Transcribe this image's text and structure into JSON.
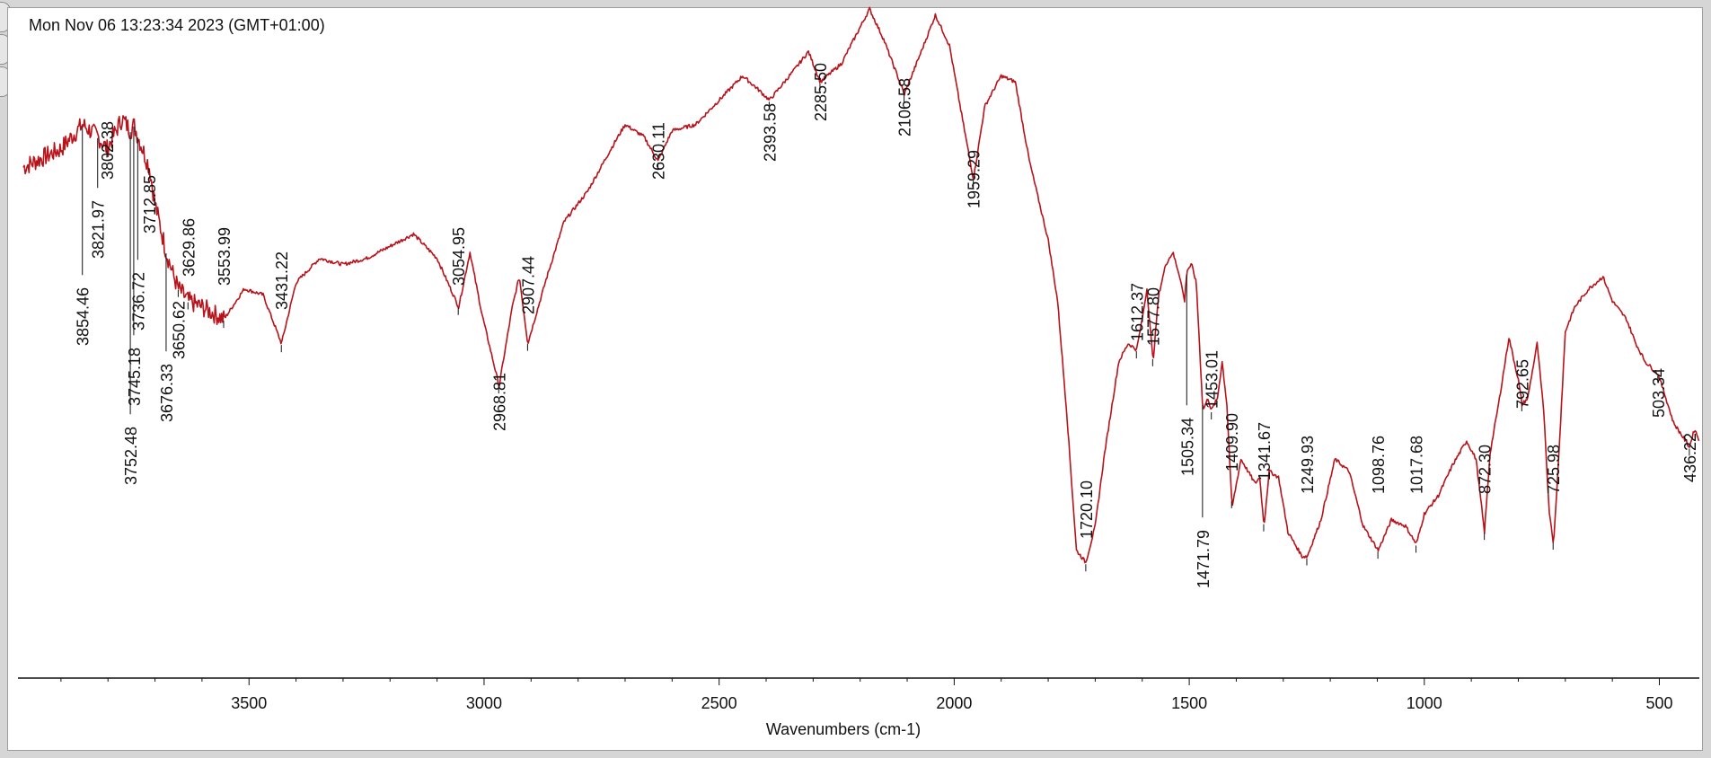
{
  "header": {
    "timestamp": "Mon Nov 06 13:23:34 2023 (GMT+01:00)"
  },
  "colors": {
    "trace": "#b8121b",
    "axis": "#111111",
    "frame": "#9c9c9c",
    "window": "#d6d6d6"
  },
  "chart_data": {
    "type": "line",
    "title": "",
    "xlabel": "Wavenumbers (cm-1)",
    "ylabel": "",
    "x_reversed": true,
    "xlim": [
      3980,
      415
    ],
    "x_ticks": [
      3500,
      3000,
      2500,
      2000,
      1500,
      1000,
      500
    ],
    "y_unit": "relative transmittance (0 = bottom of plot, 100 = top of plot)",
    "grid": false,
    "series": [
      {
        "values": [
          [
            3980,
            84
          ],
          [
            3900,
            87
          ],
          [
            3854,
            91
          ],
          [
            3821,
            89
          ],
          [
            3802,
            87
          ],
          [
            3770,
            92
          ],
          [
            3752,
            90
          ],
          [
            3745,
            91
          ],
          [
            3736,
            89
          ],
          [
            3712,
            84
          ],
          [
            3700,
            78
          ],
          [
            3676,
            70
          ],
          [
            3660,
            66
          ],
          [
            3650,
            64
          ],
          [
            3629,
            62
          ],
          [
            3600,
            61
          ],
          [
            3553,
            59
          ],
          [
            3510,
            64
          ],
          [
            3470,
            63
          ],
          [
            3431,
            55
          ],
          [
            3400,
            65
          ],
          [
            3350,
            69
          ],
          [
            3300,
            68
          ],
          [
            3250,
            69
          ],
          [
            3200,
            71
          ],
          [
            3150,
            73
          ],
          [
            3100,
            69
          ],
          [
            3054,
            61
          ],
          [
            3030,
            70
          ],
          [
            3005,
            60
          ],
          [
            2968,
            48
          ],
          [
            2940,
            61
          ],
          [
            2925,
            66
          ],
          [
            2907,
            55
          ],
          [
            2870,
            65
          ],
          [
            2830,
            75
          ],
          [
            2780,
            80
          ],
          [
            2730,
            87
          ],
          [
            2700,
            91
          ],
          [
            2660,
            89
          ],
          [
            2630,
            85
          ],
          [
            2600,
            90
          ],
          [
            2550,
            91
          ],
          [
            2500,
            95
          ],
          [
            2450,
            99
          ],
          [
            2420,
            97
          ],
          [
            2393,
            95
          ],
          [
            2340,
            100
          ],
          [
            2310,
            103
          ],
          [
            2285,
            98
          ],
          [
            2240,
            101
          ],
          [
            2200,
            107
          ],
          [
            2180,
            110
          ],
          [
            2150,
            105
          ],
          [
            2106,
            96
          ],
          [
            2070,
            103
          ],
          [
            2040,
            109
          ],
          [
            2010,
            104
          ],
          [
            1985,
            93
          ],
          [
            1959,
            82
          ],
          [
            1935,
            94
          ],
          [
            1900,
            99
          ],
          [
            1870,
            98
          ],
          [
            1840,
            85
          ],
          [
            1800,
            72
          ],
          [
            1780,
            62
          ],
          [
            1760,
            43
          ],
          [
            1740,
            21
          ],
          [
            1720,
            19
          ],
          [
            1700,
            25
          ],
          [
            1680,
            37
          ],
          [
            1650,
            52
          ],
          [
            1630,
            55
          ],
          [
            1612,
            54
          ],
          [
            1600,
            59
          ],
          [
            1590,
            64
          ],
          [
            1577,
            52
          ],
          [
            1565,
            63
          ],
          [
            1550,
            68
          ],
          [
            1535,
            70
          ],
          [
            1520,
            66
          ],
          [
            1510,
            62
          ],
          [
            1505,
            67
          ],
          [
            1495,
            68
          ],
          [
            1485,
            65
          ],
          [
            1475,
            50
          ],
          [
            1471,
            44
          ],
          [
            1460,
            46
          ],
          [
            1453,
            44
          ],
          [
            1440,
            46
          ],
          [
            1430,
            52
          ],
          [
            1420,
            45
          ],
          [
            1409,
            28
          ],
          [
            1390,
            36
          ],
          [
            1375,
            34
          ],
          [
            1360,
            32
          ],
          [
            1350,
            33
          ],
          [
            1341,
            25
          ],
          [
            1330,
            34
          ],
          [
            1310,
            33
          ],
          [
            1290,
            24
          ],
          [
            1260,
            20
          ],
          [
            1249,
            20
          ],
          [
            1220,
            26
          ],
          [
            1190,
            36
          ],
          [
            1160,
            34
          ],
          [
            1130,
            25
          ],
          [
            1098,
            21
          ],
          [
            1070,
            26
          ],
          [
            1040,
            25
          ],
          [
            1017,
            22
          ],
          [
            1000,
            27
          ],
          [
            970,
            30
          ],
          [
            940,
            35
          ],
          [
            910,
            39
          ],
          [
            890,
            36
          ],
          [
            872,
            24
          ],
          [
            860,
            37
          ],
          [
            840,
            46
          ],
          [
            820,
            56
          ],
          [
            800,
            49
          ],
          [
            792,
            45
          ],
          [
            780,
            46
          ],
          [
            760,
            55
          ],
          [
            745,
            43
          ],
          [
            735,
            28
          ],
          [
            725,
            22
          ],
          [
            715,
            35
          ],
          [
            700,
            57
          ],
          [
            680,
            61
          ],
          [
            650,
            64
          ],
          [
            620,
            66
          ],
          [
            600,
            62
          ],
          [
            570,
            59
          ],
          [
            550,
            55
          ],
          [
            530,
            52
          ],
          [
            503,
            50
          ],
          [
            490,
            47
          ],
          [
            470,
            42
          ],
          [
            436,
            38
          ],
          [
            425,
            41
          ],
          [
            415,
            39
          ]
        ]
      }
    ],
    "peak_labels": [
      "3854.46",
      "3821.97",
      "3802.38",
      "3752.48",
      "3745.18",
      "3736.72",
      "3712.85",
      "3676.33",
      "3650.62",
      "3629.86",
      "3553.99",
      "3431.22",
      "3054.95",
      "2968.81",
      "2907.44",
      "2630.11",
      "2393.58",
      "2285.50",
      "2106.58",
      "1959.29",
      "1720.10",
      "1612.37",
      "1577.80",
      "1505.34",
      "1471.79",
      "1453.01",
      "1409.90",
      "1341.67",
      "1249.93",
      "1098.76",
      "1017.68",
      "872.30",
      "792.65",
      "725.98",
      "503.34",
      "436.22"
    ]
  }
}
